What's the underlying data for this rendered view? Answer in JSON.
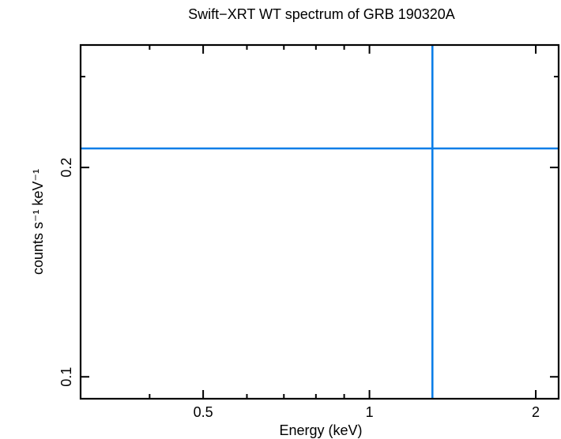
{
  "chart_data": {
    "type": "scatter",
    "title": "Swift−XRT WT spectrum of GRB 190320A",
    "xlabel": "Energy (keV)",
    "ylabel": "counts s⁻¹ keV⁻¹",
    "x_scale": "log",
    "y_scale": "log",
    "xlim": [
      0.3,
      2.2
    ],
    "ylim": [
      0.093,
      0.3
    ],
    "grid": false,
    "x_ticks": {
      "major": [
        0.5,
        1,
        2
      ],
      "major_labels": [
        "0.5",
        "1",
        "2"
      ],
      "minor": [
        0.4,
        0.6,
        0.7,
        0.8,
        0.9
      ]
    },
    "y_ticks": {
      "major": [
        0.1,
        0.2
      ],
      "major_labels": [
        "0.1",
        "0.2"
      ]
    },
    "series": [
      {
        "color": "#0a7ee8",
        "points": [
          {
            "x": 1.3,
            "xerr": [
              0.3,
              2.2
            ],
            "y": 0.213,
            "yerr": [
              0.093,
              0.3
            ]
          }
        ]
      }
    ]
  }
}
